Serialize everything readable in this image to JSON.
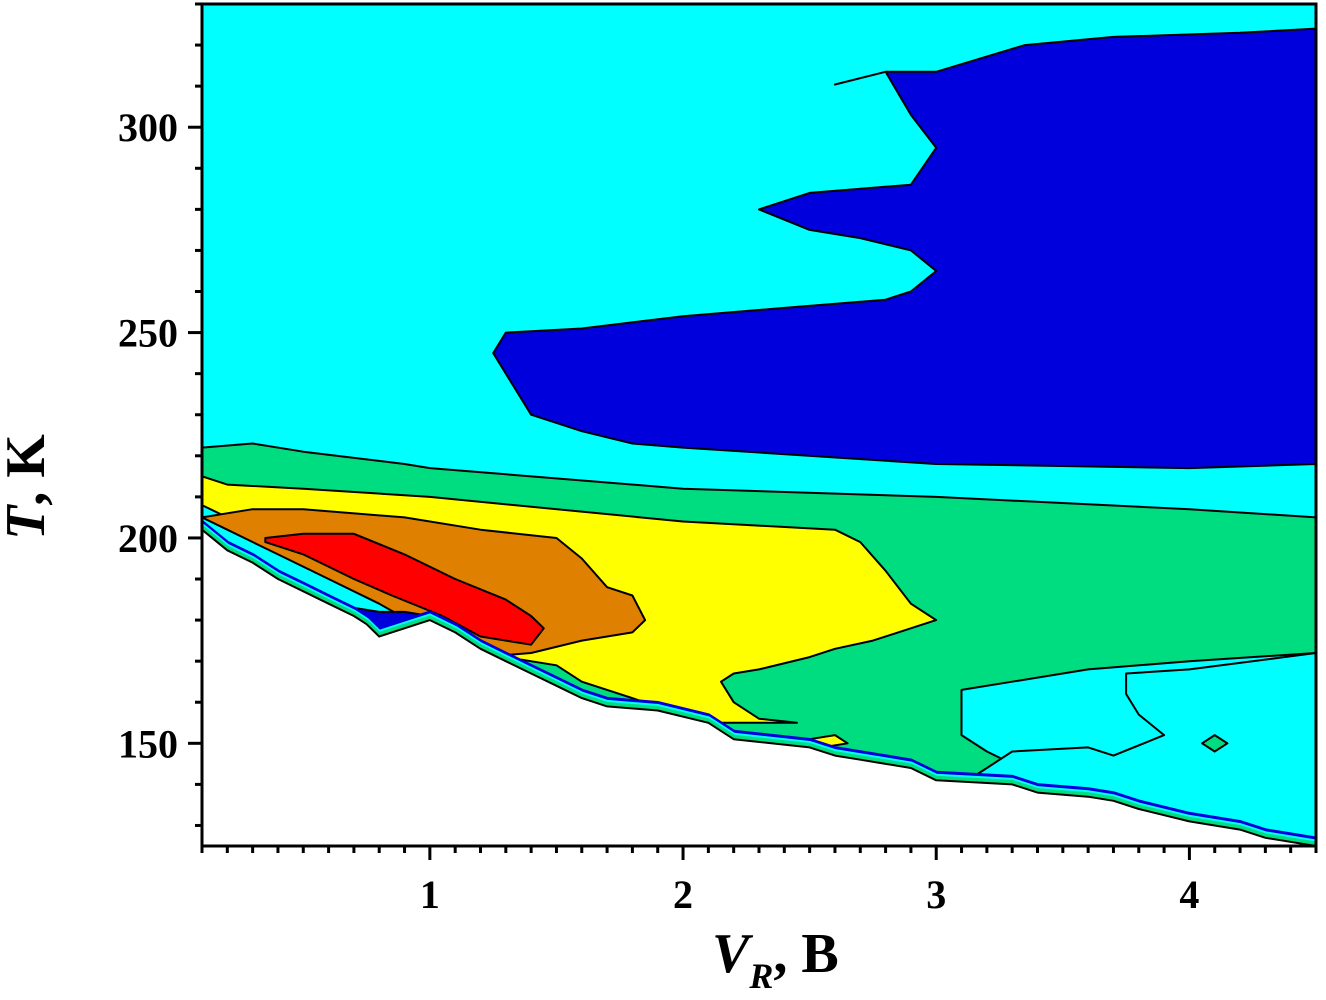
{
  "chart_data": {
    "type": "contour",
    "title": "",
    "xlabel": {
      "symbol": "V",
      "subscript": "R",
      "unit": "B"
    },
    "ylabel": {
      "symbol": "T",
      "unit": "K"
    },
    "xlim": [
      0.1,
      4.5
    ],
    "ylim": [
      125,
      330
    ],
    "x_major_ticks": [
      1,
      2,
      3,
      4
    ],
    "x_minor_step": 0.1,
    "y_major_ticks": [
      150,
      200,
      250,
      300
    ],
    "y_minor_step": 10,
    "grid": false,
    "legend": "none",
    "colors": {
      "cyan": "#00ffff",
      "blue": "#0000dd",
      "green": "#00dd80",
      "yellow": "#ffff00",
      "orange": "#e08000",
      "red": "#ff0000",
      "nodata": "#ffffff"
    },
    "regions": [
      {
        "level": "cyan",
        "points": [
          [
            0.1,
            330
          ],
          [
            4.5,
            330
          ],
          [
            4.5,
            125
          ],
          [
            1.0,
            125
          ],
          [
            0.1,
            125
          ]
        ]
      },
      {
        "level": "blue",
        "points": [
          [
            2.6,
            310.4
          ],
          [
            2.8,
            313.5
          ],
          [
            3.0,
            313.5
          ],
          [
            3.35,
            320
          ],
          [
            3.7,
            322
          ],
          [
            4.2,
            323
          ],
          [
            4.5,
            324
          ],
          [
            4.5,
            218
          ],
          [
            4.0,
            217
          ],
          [
            3.0,
            218
          ],
          [
            2.0,
            222
          ],
          [
            1.8,
            223
          ],
          [
            1.6,
            226
          ],
          [
            1.4,
            230
          ],
          [
            1.25,
            245
          ],
          [
            1.3,
            250
          ],
          [
            1.6,
            251
          ],
          [
            2.0,
            254
          ],
          [
            2.4,
            256
          ],
          [
            2.8,
            258
          ],
          [
            2.9,
            260
          ],
          [
            3.0,
            265
          ],
          [
            2.9,
            270
          ],
          [
            2.7,
            273
          ],
          [
            2.5,
            275
          ],
          [
            2.3,
            280
          ],
          [
            2.5,
            284
          ],
          [
            2.9,
            286
          ],
          [
            3.0,
            295
          ],
          [
            2.9,
            303
          ],
          [
            2.8,
            313.5
          ]
        ]
      },
      {
        "level": "green",
        "points": [
          [
            0.1,
            222
          ],
          [
            0.3,
            223
          ],
          [
            0.5,
            221
          ],
          [
            0.9,
            218
          ],
          [
            1.0,
            217
          ],
          [
            2.0,
            212
          ],
          [
            3.0,
            210
          ],
          [
            4.0,
            207
          ],
          [
            4.5,
            205
          ],
          [
            4.5,
            172
          ],
          [
            4.0,
            170
          ],
          [
            3.6,
            168
          ],
          [
            3.3,
            165
          ],
          [
            3.1,
            163
          ],
          [
            3.1,
            159
          ],
          [
            3.1,
            152
          ],
          [
            3.2,
            148
          ],
          [
            3.3,
            145
          ],
          [
            3.5,
            141
          ],
          [
            3.9,
            140
          ],
          [
            4.0,
            136
          ],
          [
            3.9,
            134
          ],
          [
            3.6,
            138
          ],
          [
            3.3,
            140
          ],
          [
            3.0,
            143
          ],
          [
            2.7,
            145
          ],
          [
            2.4,
            149
          ],
          [
            2.1,
            153
          ],
          [
            1.8,
            157
          ],
          [
            1.6,
            160
          ],
          [
            1.5,
            165
          ],
          [
            1.3,
            171
          ],
          [
            1.0,
            183
          ],
          [
            0.9,
            188
          ],
          [
            0.8,
            192
          ],
          [
            0.6,
            198
          ],
          [
            0.4,
            202
          ],
          [
            0.2,
            210
          ],
          [
            0.1,
            215
          ]
        ]
      },
      {
        "level": "cyan",
        "points": [
          [
            3.75,
            167
          ],
          [
            4.0,
            168
          ],
          [
            4.5,
            172
          ],
          [
            4.5,
            125
          ],
          [
            4.0,
            126
          ],
          [
            3.85,
            130
          ],
          [
            3.6,
            135
          ],
          [
            3.1,
            140
          ],
          [
            3.2,
            144
          ],
          [
            3.3,
            148
          ],
          [
            3.6,
            149
          ],
          [
            3.7,
            147
          ],
          [
            3.9,
            152
          ],
          [
            3.8,
            157
          ],
          [
            3.75,
            162
          ]
        ]
      },
      {
        "level": "yellow",
        "points": [
          [
            0.1,
            215
          ],
          [
            0.2,
            213
          ],
          [
            0.5,
            212
          ],
          [
            1.0,
            210
          ],
          [
            2.0,
            204
          ],
          [
            2.6,
            202
          ],
          [
            2.7,
            199
          ],
          [
            2.8,
            192
          ],
          [
            2.9,
            184
          ],
          [
            3.0,
            180
          ],
          [
            2.75,
            175
          ],
          [
            2.6,
            173
          ],
          [
            2.5,
            171
          ],
          [
            2.3,
            168
          ],
          [
            2.2,
            167
          ],
          [
            2.15,
            165
          ],
          [
            2.2,
            160
          ],
          [
            2.3,
            156
          ],
          [
            2.45,
            155
          ],
          [
            2.2,
            155
          ],
          [
            2.1,
            155
          ],
          [
            2.0,
            157
          ],
          [
            1.9,
            159
          ],
          [
            1.6,
            165
          ],
          [
            1.5,
            169
          ],
          [
            1.3,
            171
          ],
          [
            1.0,
            181
          ],
          [
            0.8,
            185
          ],
          [
            0.6,
            192
          ],
          [
            0.4,
            199
          ],
          [
            0.2,
            205
          ],
          [
            0.1,
            208
          ]
        ]
      },
      {
        "level": "yellow",
        "points": [
          [
            2.5,
            151
          ],
          [
            2.6,
            152
          ],
          [
            2.65,
            150
          ],
          [
            2.55,
            149
          ],
          [
            2.5,
            150
          ]
        ]
      },
      {
        "level": "orange",
        "points": [
          [
            0.1,
            205
          ],
          [
            0.3,
            207
          ],
          [
            0.5,
            207
          ],
          [
            0.9,
            205
          ],
          [
            1.2,
            202
          ],
          [
            1.5,
            200
          ],
          [
            1.6,
            195
          ],
          [
            1.7,
            188
          ],
          [
            1.8,
            186
          ],
          [
            1.85,
            180
          ],
          [
            1.8,
            177
          ],
          [
            1.6,
            175
          ],
          [
            1.4,
            172
          ],
          [
            1.2,
            171
          ],
          [
            1.0,
            177
          ],
          [
            0.8,
            184
          ],
          [
            0.6,
            190
          ],
          [
            0.4,
            196
          ],
          [
            0.2,
            202
          ]
        ]
      },
      {
        "level": "red",
        "points": [
          [
            0.35,
            200
          ],
          [
            0.5,
            201
          ],
          [
            0.7,
            201
          ],
          [
            0.9,
            196
          ],
          [
            1.1,
            190
          ],
          [
            1.3,
            185
          ],
          [
            1.4,
            181
          ],
          [
            1.45,
            178
          ],
          [
            1.4,
            174
          ],
          [
            1.2,
            176
          ],
          [
            1.05,
            181
          ],
          [
            0.85,
            186
          ],
          [
            0.7,
            190
          ],
          [
            0.5,
            196
          ],
          [
            0.35,
            199
          ]
        ]
      },
      {
        "level": "green",
        "points": [
          [
            4.05,
            150
          ],
          [
            4.1,
            152
          ],
          [
            4.15,
            150
          ],
          [
            4.1,
            148
          ]
        ]
      },
      {
        "level": "blue",
        "points": [
          [
            0.7,
            183
          ],
          [
            0.75,
            180
          ],
          [
            0.8,
            178
          ],
          [
            0.9,
            178
          ],
          [
            1.0,
            179
          ],
          [
            1.0,
            181
          ],
          [
            0.9,
            182
          ],
          [
            0.8,
            182
          ]
        ]
      }
    ],
    "nodata_boundary": [
      [
        0.1,
        202
      ],
      [
        0.2,
        197
      ],
      [
        0.3,
        194
      ],
      [
        0.4,
        190
      ],
      [
        0.5,
        187
      ],
      [
        0.6,
        184
      ],
      [
        0.7,
        181
      ],
      [
        0.75,
        179
      ],
      [
        0.8,
        176
      ],
      [
        0.9,
        178
      ],
      [
        1.0,
        180
      ],
      [
        1.1,
        177
      ],
      [
        1.2,
        173
      ],
      [
        1.3,
        170
      ],
      [
        1.4,
        167
      ],
      [
        1.5,
        164
      ],
      [
        1.6,
        161
      ],
      [
        1.7,
        159
      ],
      [
        1.9,
        158
      ],
      [
        2.1,
        155
      ],
      [
        2.2,
        151
      ],
      [
        2.5,
        149
      ],
      [
        2.6,
        147
      ],
      [
        2.7,
        146
      ],
      [
        2.9,
        144
      ],
      [
        3.0,
        141
      ],
      [
        3.3,
        140
      ],
      [
        3.4,
        138
      ],
      [
        3.6,
        137
      ],
      [
        3.7,
        136
      ],
      [
        3.8,
        134
      ],
      [
        4.0,
        131
      ],
      [
        4.2,
        129
      ],
      [
        4.3,
        127
      ],
      [
        4.5,
        125
      ]
    ]
  }
}
